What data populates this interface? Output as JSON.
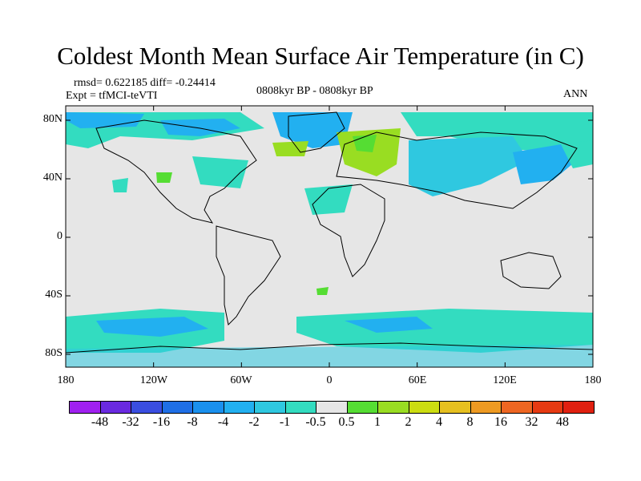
{
  "title": "Coldest Month Mean Surface Air Temperature (in C)",
  "stats": "rmsd= 0.622185 diff= -0.24414",
  "expt": "Expt = tfMCI-teVTI",
  "period": "0808kyr BP - 0808kyr BP",
  "season": "ANN",
  "lat_labels": [
    "80N",
    "40N",
    "0",
    "40S",
    "80S"
  ],
  "lon_labels": [
    "180",
    "120W",
    "60W",
    "0",
    "60E",
    "120E",
    "180"
  ],
  "colorbar": {
    "labels": [
      "-48",
      "-32",
      "-16",
      "-8",
      "-4",
      "-2",
      "-1",
      "-0.5",
      "0.5",
      "1",
      "2",
      "4",
      "8",
      "16",
      "32",
      "48"
    ],
    "colors": [
      "#a020f0",
      "#6a2ae0",
      "#3a4ee0",
      "#1f6fe6",
      "#1a90ee",
      "#22b0f0",
      "#2fc8e0",
      "#33dcc0",
      "#e6e6e6",
      "#55dd33",
      "#99dd22",
      "#ccdd11",
      "#e6c020",
      "#ee9a22",
      "#ee6622",
      "#e63a12",
      "#e02010"
    ]
  }
}
